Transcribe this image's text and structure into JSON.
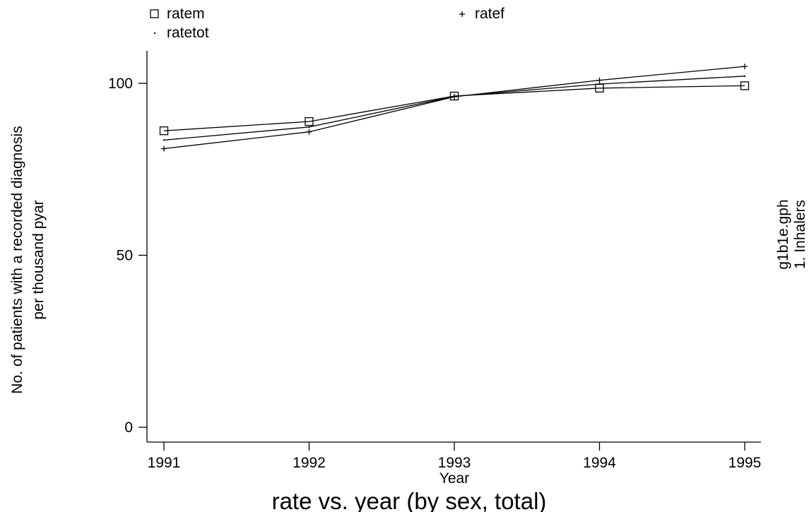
{
  "chart_data": {
    "type": "line",
    "title": "rate vs. year (by sex, total)",
    "xlabel": "Year",
    "ylabel_line1": "No. of patients with a recorded diagnosis",
    "ylabel_line2": "per thousand pyar",
    "side_note_line1": "g1b1e.gph",
    "side_note_line2": "1.  Inhalers",
    "x": [
      1991,
      1992,
      1993,
      1994,
      1995
    ],
    "x_tick_labels": [
      "1991",
      "1992",
      "1993",
      "1994",
      "1995"
    ],
    "y_ticks": [
      0,
      50,
      100
    ],
    "y_tick_labels": [
      "0",
      "50",
      "100"
    ],
    "ylim": [
      -3,
      109
    ],
    "grid": false,
    "legend_placement": "top",
    "series": [
      {
        "name": "ratem",
        "marker": "square",
        "symbol": "□",
        "values": [
          86.2,
          88.9,
          96.3,
          98.6,
          99.3
        ]
      },
      {
        "name": "ratef",
        "marker": "plus",
        "symbol": "+",
        "values": [
          81.0,
          85.9,
          96.1,
          100.9,
          104.9
        ]
      },
      {
        "name": "ratetot",
        "marker": "dot",
        "symbol": "·",
        "values": [
          83.5,
          87.3,
          96.2,
          99.8,
          102.1
        ]
      }
    ]
  }
}
